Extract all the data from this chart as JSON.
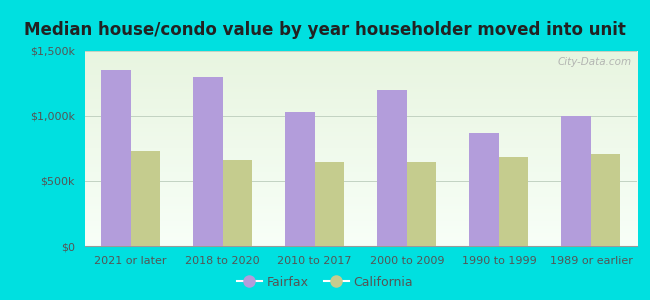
{
  "title": "Median house/condo value by year householder moved into unit",
  "categories": [
    "2021 or later",
    "2018 to 2020",
    "2010 to 2017",
    "2000 to 2009",
    "1990 to 1999",
    "1989 or earlier"
  ],
  "fairfax_values": [
    1350000,
    1300000,
    1030000,
    1200000,
    870000,
    1000000
  ],
  "california_values": [
    730000,
    660000,
    650000,
    650000,
    685000,
    710000
  ],
  "fairfax_color": "#b39ddb",
  "california_color": "#c5cc8e",
  "background_color": "#00e0e0",
  "ylim": [
    0,
    1500000
  ],
  "yticks": [
    0,
    500000,
    1000000,
    1500000
  ],
  "ytick_labels": [
    "$0",
    "$500k",
    "$1,000k",
    "$1,500k"
  ],
  "watermark": "City-Data.com",
  "legend_labels": [
    "Fairfax",
    "California"
  ],
  "title_fontsize": 12,
  "tick_fontsize": 8,
  "legend_fontsize": 9,
  "bar_width": 0.32
}
